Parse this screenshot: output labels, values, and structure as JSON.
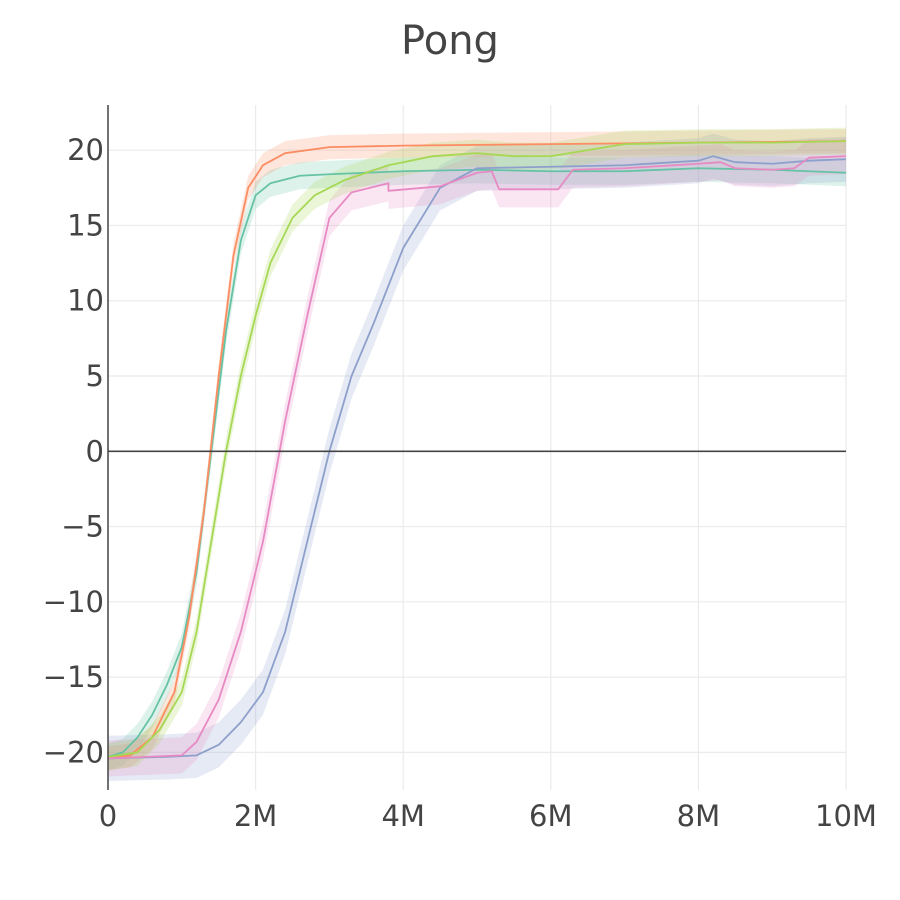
{
  "chart_data": {
    "type": "line",
    "title": "Pong",
    "xlabel": "",
    "ylabel": "",
    "xlim": [
      0,
      10000000
    ],
    "ylim": [
      -22.5,
      23
    ],
    "grid": true,
    "x_ticks": [
      {
        "value": 0,
        "label": "0"
      },
      {
        "value": 2000000,
        "label": "2M"
      },
      {
        "value": 4000000,
        "label": "4M"
      },
      {
        "value": 6000000,
        "label": "6M"
      },
      {
        "value": 8000000,
        "label": "8M"
      },
      {
        "value": 10000000,
        "label": "10M"
      }
    ],
    "y_ticks": [
      {
        "value": 20,
        "label": "20"
      },
      {
        "value": 15,
        "label": "15"
      },
      {
        "value": 10,
        "label": "10"
      },
      {
        "value": 5,
        "label": "5"
      },
      {
        "value": 0,
        "label": "0"
      },
      {
        "value": -5,
        "label": "−5"
      },
      {
        "value": -10,
        "label": "−10"
      },
      {
        "value": -15,
        "label": "−15"
      },
      {
        "value": -20,
        "label": "−20"
      }
    ],
    "series": [
      {
        "color": "#66c2a5",
        "points": [
          [
            0,
            -20.3
          ],
          [
            200000,
            -20
          ],
          [
            400000,
            -19
          ],
          [
            600000,
            -17.5
          ],
          [
            800000,
            -15.5
          ],
          [
            1000000,
            -13
          ],
          [
            1200000,
            -8
          ],
          [
            1400000,
            0
          ],
          [
            1600000,
            8
          ],
          [
            1800000,
            14
          ],
          [
            2000000,
            17
          ],
          [
            2200000,
            17.8
          ],
          [
            2600000,
            18.3
          ],
          [
            3000000,
            18.4
          ],
          [
            4000000,
            18.6
          ],
          [
            5000000,
            18.7
          ],
          [
            6000000,
            18.6
          ],
          [
            7000000,
            18.6
          ],
          [
            8000000,
            18.8
          ],
          [
            9000000,
            18.7
          ],
          [
            10000000,
            18.5
          ]
        ],
        "band": 0.9
      },
      {
        "color": "#fc8d62",
        "points": [
          [
            0,
            -20.4
          ],
          [
            300000,
            -20.2
          ],
          [
            600000,
            -19
          ],
          [
            900000,
            -16
          ],
          [
            1100000,
            -11
          ],
          [
            1300000,
            -4
          ],
          [
            1500000,
            5
          ],
          [
            1700000,
            13
          ],
          [
            1900000,
            17.5
          ],
          [
            2100000,
            19
          ],
          [
            2400000,
            19.8
          ],
          [
            3000000,
            20.2
          ],
          [
            4000000,
            20.3
          ],
          [
            6000000,
            20.4
          ],
          [
            8000000,
            20.5
          ],
          [
            10000000,
            20.6
          ]
        ],
        "band": 0.8
      },
      {
        "color": "#8da0cb",
        "points": [
          [
            0,
            -20.4
          ],
          [
            800000,
            -20.3
          ],
          [
            1200000,
            -20.2
          ],
          [
            1500000,
            -19.5
          ],
          [
            1800000,
            -18
          ],
          [
            2100000,
            -16
          ],
          [
            2400000,
            -12
          ],
          [
            2700000,
            -6
          ],
          [
            3000000,
            0
          ],
          [
            3300000,
            5
          ],
          [
            3600000,
            8.5
          ],
          [
            4000000,
            13.5
          ],
          [
            4500000,
            17.5
          ],
          [
            5000000,
            18.8
          ],
          [
            6000000,
            18.9
          ],
          [
            7000000,
            19
          ],
          [
            8000000,
            19.3
          ],
          [
            8200000,
            19.6
          ],
          [
            8500000,
            19.2
          ],
          [
            9000000,
            19.1
          ],
          [
            9500000,
            19.3
          ],
          [
            10000000,
            19.4
          ]
        ],
        "band": 1.5
      },
      {
        "color": "#e78ac3",
        "points": [
          [
            0,
            -20.4
          ],
          [
            1000000,
            -20.2
          ],
          [
            1200000,
            -19.3
          ],
          [
            1500000,
            -16.5
          ],
          [
            1800000,
            -12
          ],
          [
            2100000,
            -6
          ],
          [
            2400000,
            2
          ],
          [
            2700000,
            9
          ],
          [
            3000000,
            15.5
          ],
          [
            3300000,
            17.2
          ],
          [
            3800000,
            17.8
          ],
          [
            3800001,
            17.3
          ],
          [
            4500000,
            17.6
          ],
          [
            5000000,
            18.5
          ],
          [
            5200000,
            18.6
          ],
          [
            5300000,
            17.4
          ],
          [
            6100000,
            17.4
          ],
          [
            6300000,
            18.7
          ],
          [
            7000000,
            18.8
          ],
          [
            8000000,
            19.1
          ],
          [
            8300000,
            19.2
          ],
          [
            8500000,
            18.8
          ],
          [
            9000000,
            18.7
          ],
          [
            9300000,
            18.8
          ],
          [
            9500000,
            19.5
          ],
          [
            10000000,
            19.6
          ]
        ],
        "band": 1.2
      },
      {
        "color": "#a6d854",
        "points": [
          [
            0,
            -20.3
          ],
          [
            400000,
            -20
          ],
          [
            700000,
            -18.5
          ],
          [
            1000000,
            -16
          ],
          [
            1200000,
            -12
          ],
          [
            1400000,
            -6
          ],
          [
            1600000,
            0
          ],
          [
            1800000,
            5
          ],
          [
            2000000,
            9
          ],
          [
            2200000,
            12.5
          ],
          [
            2500000,
            15.5
          ],
          [
            2800000,
            17
          ],
          [
            3200000,
            18
          ],
          [
            3800000,
            19
          ],
          [
            4400000,
            19.6
          ],
          [
            5000000,
            19.8
          ],
          [
            5500000,
            19.6
          ],
          [
            6000000,
            19.6
          ],
          [
            6500000,
            20
          ],
          [
            7000000,
            20.4
          ],
          [
            8000000,
            20.5
          ],
          [
            9000000,
            20.5
          ],
          [
            10000000,
            20.6
          ]
        ],
        "band": 0.9
      }
    ]
  }
}
